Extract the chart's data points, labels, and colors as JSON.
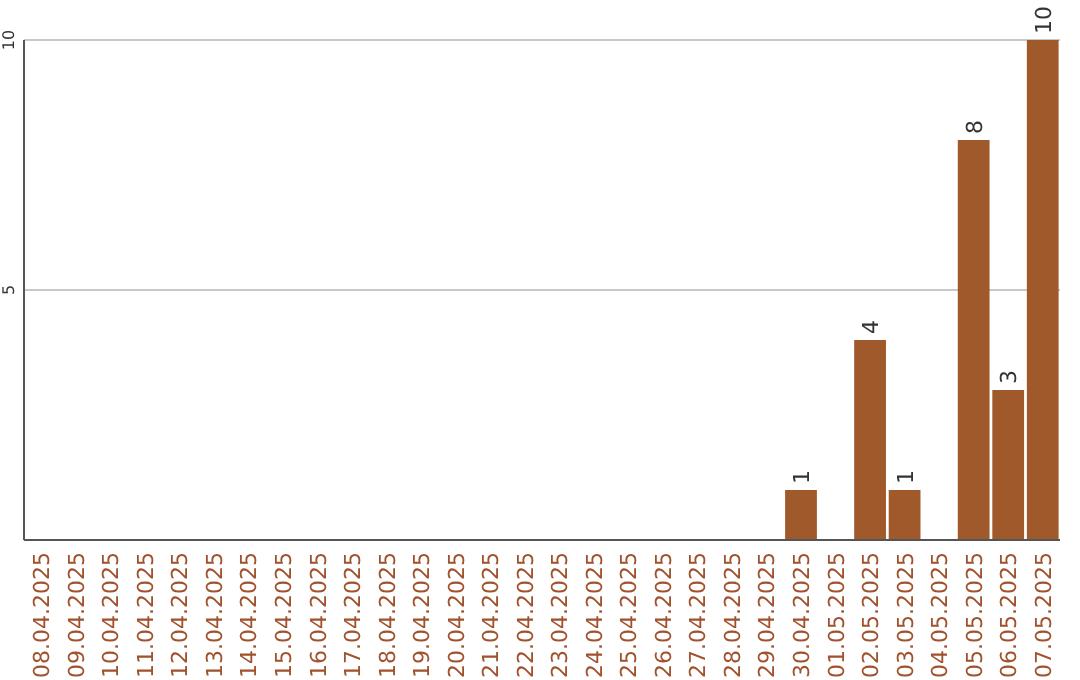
{
  "chart_data": {
    "type": "bar",
    "categories": [
      "08.04.2025",
      "09.04.2025",
      "10.04.2025",
      "11.04.2025",
      "12.04.2025",
      "13.04.2025",
      "14.04.2025",
      "15.04.2025",
      "16.04.2025",
      "17.04.2025",
      "18.04.2025",
      "19.04.2025",
      "20.04.2025",
      "21.04.2025",
      "22.04.2025",
      "23.04.2025",
      "24.04.2025",
      "25.04.2025",
      "26.04.2025",
      "27.04.2025",
      "28.04.2025",
      "29.04.2025",
      "30.04.2025",
      "01.05.2025",
      "02.05.2025",
      "03.05.2025",
      "04.05.2025",
      "05.05.2025",
      "06.05.2025",
      "07.05.2025"
    ],
    "values": [
      0,
      0,
      0,
      0,
      0,
      0,
      0,
      0,
      0,
      0,
      0,
      0,
      0,
      0,
      0,
      0,
      0,
      0,
      0,
      0,
      0,
      0,
      1,
      0,
      4,
      1,
      0,
      8,
      3,
      10
    ],
    "value_labels": [
      null,
      null,
      null,
      null,
      null,
      null,
      null,
      null,
      null,
      null,
      null,
      null,
      null,
      null,
      null,
      null,
      null,
      null,
      null,
      null,
      null,
      null,
      "1",
      null,
      "4",
      "1",
      null,
      "8",
      "3",
      "10"
    ],
    "color": "#a0592a",
    "ylim": [
      0,
      10
    ],
    "yticks": [
      5,
      10
    ],
    "grid": "y"
  }
}
